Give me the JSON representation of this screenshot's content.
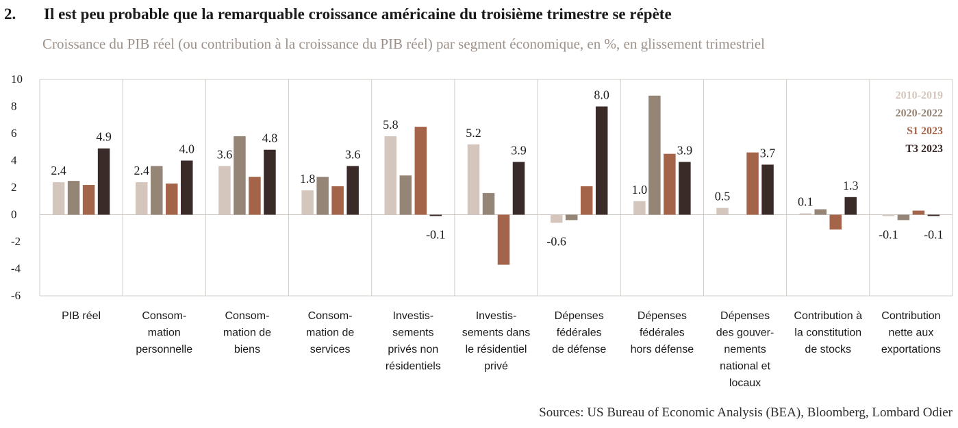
{
  "header": {
    "number": "2.",
    "title": "Il est peu probable que la remarquable croissance américaine du troisième trimestre se répète",
    "subtitle": "Croissance du PIB réel (ou contribution à la croissance du PIB réel) par segment économique, en %, en glissement trimestriel"
  },
  "footer": {
    "sources": "Sources: US Bureau of Economic Analysis (BEA), Bloomberg, Lombard Odier"
  },
  "chart_data": {
    "type": "bar",
    "ylim": [
      -6,
      10
    ],
    "yticks": [
      "10",
      "8",
      "6",
      "4",
      "2",
      "0",
      "-2",
      "-4",
      "-6"
    ],
    "ytick_values": [
      10,
      8,
      6,
      4,
      2,
      0,
      -2,
      -4,
      -6
    ],
    "legend_position": "top-right",
    "grid": false,
    "categories": [
      [
        "PIB réel"
      ],
      [
        "Consom-",
        "mation",
        "personnelle"
      ],
      [
        "Consom-",
        "mation de",
        "biens"
      ],
      [
        "Consom-",
        "mation de",
        "services"
      ],
      [
        "Investis-",
        "sements",
        "privés non",
        "résidentiels"
      ],
      [
        "Investis-",
        "sements dans",
        "le résidentiel",
        "privé"
      ],
      [
        "Dépenses",
        "fédérales",
        "de défense"
      ],
      [
        "Dépenses",
        "fédérales",
        "hors défense"
      ],
      [
        "Dépenses",
        "des gouver-",
        "nements",
        "national et",
        "locaux"
      ],
      [
        "Contribution à",
        "la constitution",
        "de stocks"
      ],
      [
        "Contribution",
        "nette aux",
        "exportations"
      ]
    ],
    "series": [
      {
        "name": "2010-2019",
        "color": "#d5c6bd",
        "values": [
          2.4,
          2.4,
          3.6,
          1.8,
          5.8,
          5.2,
          -0.6,
          1.0,
          0.5,
          0.1,
          -0.1
        ]
      },
      {
        "name": "2020-2022",
        "color": "#958577",
        "values": [
          2.5,
          3.6,
          5.8,
          2.8,
          2.9,
          1.6,
          -0.4,
          8.8,
          0.0,
          0.4,
          -0.4
        ]
      },
      {
        "name": "S1 2023",
        "color": "#a4644a",
        "values": [
          2.2,
          2.3,
          2.8,
          2.1,
          6.5,
          -3.7,
          2.1,
          4.5,
          4.6,
          -1.1,
          0.3
        ]
      },
      {
        "name": "T3 2023",
        "color": "#3a2a28",
        "values": [
          4.9,
          4.0,
          4.8,
          3.6,
          -0.1,
          3.9,
          8.0,
          3.9,
          3.7,
          1.3,
          -0.1
        ]
      }
    ],
    "data_labels": [
      {
        "category": 0,
        "series": 0,
        "text": "2.4"
      },
      {
        "category": 0,
        "series": 3,
        "text": "4.9"
      },
      {
        "category": 1,
        "series": 0,
        "text": "2.4"
      },
      {
        "category": 1,
        "series": 3,
        "text": "4.0"
      },
      {
        "category": 2,
        "series": 0,
        "text": "3.6"
      },
      {
        "category": 2,
        "series": 3,
        "text": "4.8"
      },
      {
        "category": 3,
        "series": 0,
        "text": "1.8"
      },
      {
        "category": 3,
        "series": 3,
        "text": "3.6"
      },
      {
        "category": 4,
        "series": 0,
        "text": "5.8"
      },
      {
        "category": 4,
        "series": 3,
        "text": "-0.1"
      },
      {
        "category": 5,
        "series": 0,
        "text": "5.2"
      },
      {
        "category": 5,
        "series": 3,
        "text": "3.9"
      },
      {
        "category": 6,
        "series": 0,
        "text": "-0.6"
      },
      {
        "category": 6,
        "series": 3,
        "text": "8.0"
      },
      {
        "category": 7,
        "series": 0,
        "text": "1.0"
      },
      {
        "category": 7,
        "series": 3,
        "text": "3.9"
      },
      {
        "category": 8,
        "series": 0,
        "text": "0.5"
      },
      {
        "category": 8,
        "series": 3,
        "text": "3.7"
      },
      {
        "category": 9,
        "series": 0,
        "text": "0.1"
      },
      {
        "category": 9,
        "series": 3,
        "text": "1.3"
      },
      {
        "category": 10,
        "series": 0,
        "text": "-0.1"
      },
      {
        "category": 10,
        "series": 3,
        "text": "-0.1"
      }
    ]
  }
}
